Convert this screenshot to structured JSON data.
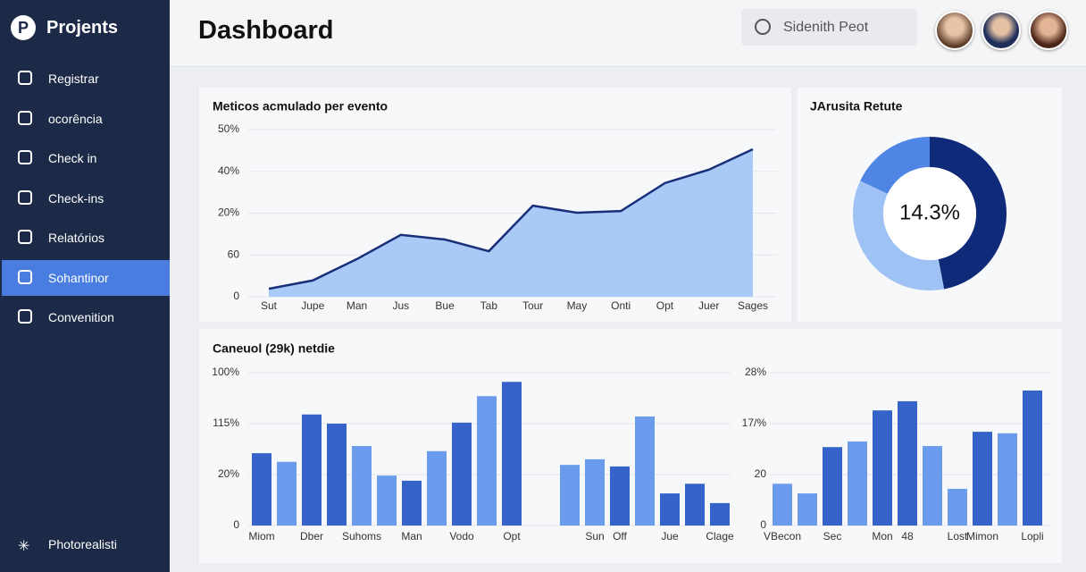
{
  "sidebar": {
    "brand": "Projents",
    "items": [
      "Registrar",
      "ocorência",
      "Check in",
      "Check-ins",
      "Relatórios",
      "Sohantinor",
      "Convenition"
    ],
    "active": 5,
    "footer": "Photorealisti"
  },
  "header": {
    "title": "Dashboard",
    "search": "Sidenith Peot"
  },
  "chart_data": [
    {
      "type": "area",
      "title": "Meticos  acmulado per evento",
      "categories": [
        "Sut",
        "Jupe",
        "Man",
        "Jus",
        "Bue",
        "Tab",
        "Tour",
        "May",
        "Onti",
        "Opt",
        "Juer",
        "Sages"
      ],
      "values": [
        0.19,
        0.39,
        0.9,
        1.48,
        1.37,
        1.09,
        2.18,
        2.01,
        2.05,
        2.72,
        3.04,
        3.53
      ],
      "color": "#1a2f7a",
      "fill": "#a9c9f6",
      "ylim": [
        0,
        4
      ],
      "yticks": [
        0,
        {
          "value": 1,
          "label": "60"
        },
        {
          "value": 2,
          "label": "20%"
        },
        {
          "value": 3,
          "label": "40%"
        },
        {
          "value": 4,
          "label": "50%"
        }
      ],
      "grid": true
    },
    {
      "type": "donut",
      "title": "JArusita Retute",
      "center_label": "14.3%",
      "values": [
        47,
        35,
        18
      ],
      "colors": [
        "#0f2a78",
        "#9fc2f4",
        "#4f86e6"
      ]
    },
    {
      "type": "bar",
      "title": "Caneuol (29k) netdie",
      "categories": [
        "Miom",
        null,
        "Dber",
        null,
        "Suhoms",
        null,
        "Man",
        null,
        "Vodo",
        null,
        "Opt"
      ],
      "values": [
        1.42,
        1.25,
        2.18,
        2.0,
        1.56,
        0.98,
        0.88,
        1.46,
        2.02,
        2.54,
        2.82
      ],
      "colors": [
        "#3563c9",
        "#6a9bec",
        "#3563c9",
        "#3563c9",
        "#6a9bec",
        "#6a9bec",
        "#3563c9",
        "#6a9bec",
        "#3563c9",
        "#6a9bec",
        "#3563c9"
      ],
      "ylim": [
        0,
        3
      ],
      "yticks": [
        0,
        {
          "value": 1,
          "label": "20%"
        },
        {
          "value": 2,
          "label": "115%"
        },
        {
          "value": 3,
          "label": "100%"
        }
      ],
      "grid": true
    },
    {
      "type": "bar",
      "categories": [
        null,
        "Sun",
        "Off",
        null,
        "Jue",
        null,
        "Clage"
      ],
      "values": [
        1.19,
        1.3,
        1.16,
        2.14,
        0.63,
        0.82,
        0.44
      ],
      "colors": [
        "#6a9bec",
        "#6a9bec",
        "#3563c9",
        "#6a9bec",
        "#3563c9",
        "#3563c9",
        "#3563c9"
      ],
      "ylim": [
        0,
        3
      ]
    },
    {
      "type": "bar",
      "categories": [
        "VBecon",
        null,
        "Sec",
        null,
        "Mon",
        "48",
        null,
        "Lost",
        "Mimon",
        null,
        "Lopli"
      ],
      "values": [
        0.82,
        0.63,
        1.54,
        1.65,
        2.26,
        2.44,
        1.56,
        0.72,
        1.84,
        1.81,
        2.65
      ],
      "colors": [
        "#6a9bec",
        "#6a9bec",
        "#3563c9",
        "#6a9bec",
        "#3563c9",
        "#3563c9",
        "#6a9bec",
        "#6a9bec",
        "#3563c9",
        "#6a9bec",
        "#3563c9"
      ],
      "ylim": [
        0,
        3
      ],
      "yticks": [
        0,
        {
          "value": 1,
          "label": "20"
        },
        {
          "value": 2,
          "label": "17/%"
        },
        {
          "value": 3,
          "label": "28%"
        }
      ],
      "grid": true
    }
  ]
}
